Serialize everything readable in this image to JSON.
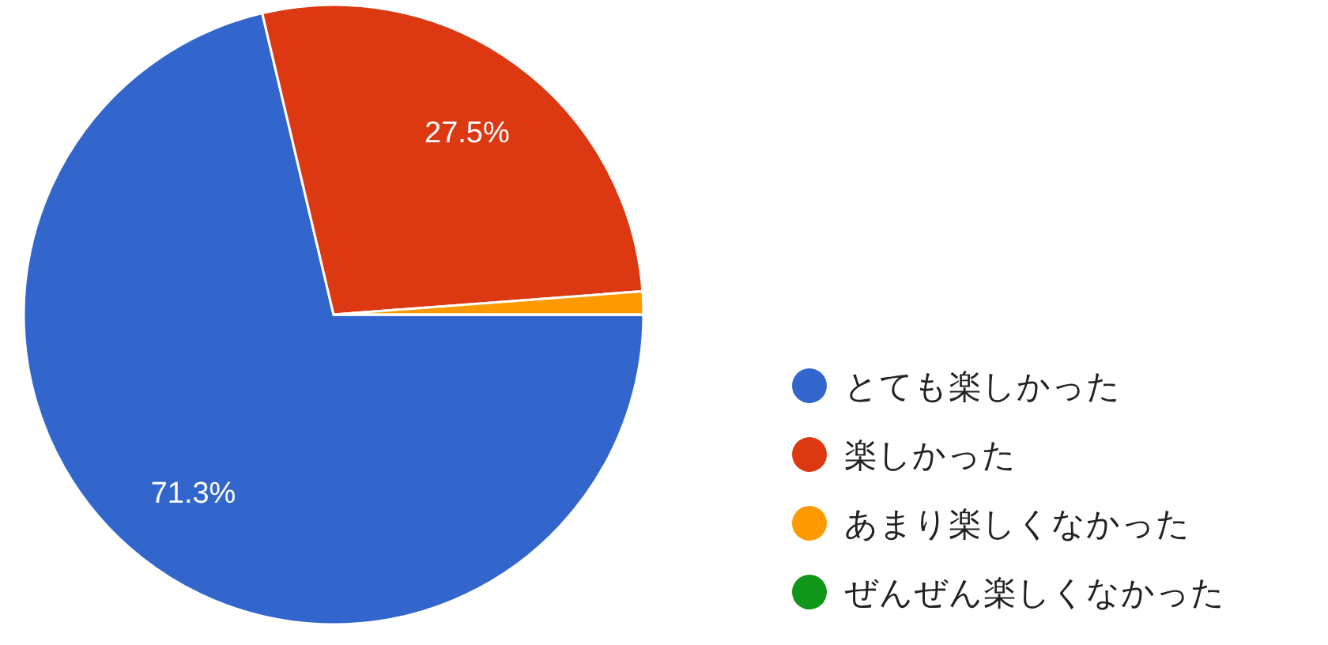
{
  "chart_data": {
    "type": "pie",
    "categories": [
      "とても楽しかった",
      "楽しかった",
      "あまり楽しくなかった",
      "ぜんぜん楽しくなかった"
    ],
    "values": [
      71.3,
      27.5,
      1.2,
      0
    ],
    "colors": [
      "#3366cc",
      "#dc3912",
      "#ff9900",
      "#109618"
    ],
    "value_labels": [
      "71.3%",
      "27.5%",
      null,
      null
    ],
    "legend": "right"
  }
}
